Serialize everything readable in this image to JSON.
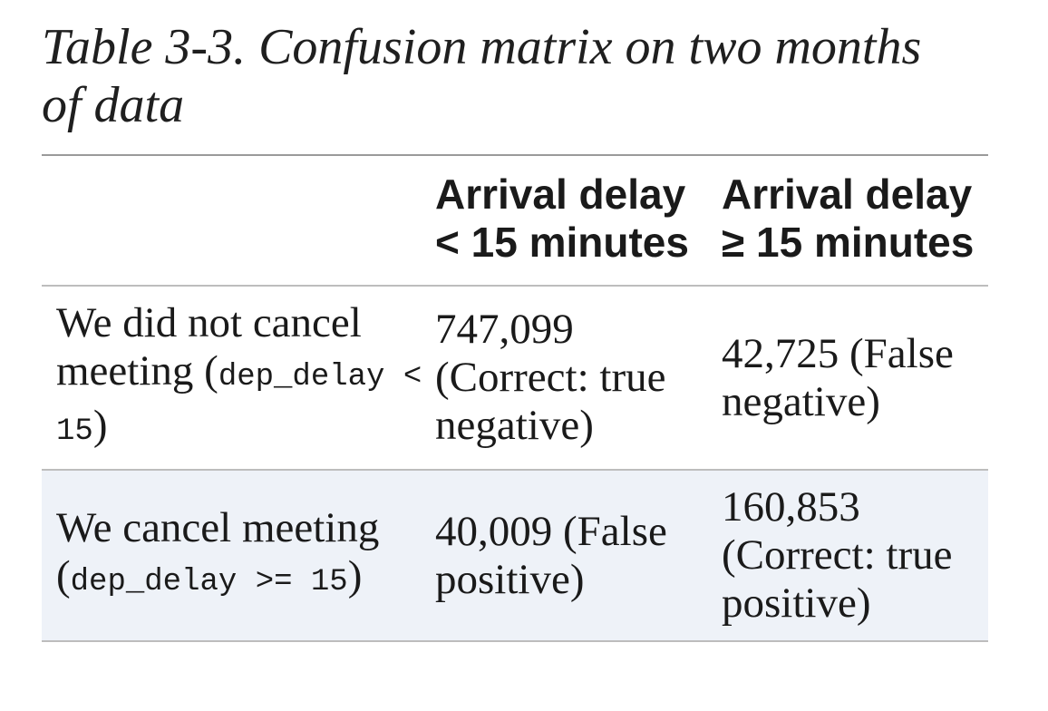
{
  "caption": {
    "label": "Table 3-3.",
    "title": "Confusion matrix on two months of data"
  },
  "table": {
    "headers": [
      "",
      "Arrival delay < 15 minutes",
      "Arrival delay ≥ 15 minutes"
    ],
    "rows": [
      {
        "label_prefix": "We did not cancel meeting (",
        "label_code": "dep_delay < 15",
        "label_suffix": ")",
        "cells": [
          "747,099 (Correct: true negative)",
          "42,725 (False negative)"
        ]
      },
      {
        "label_prefix": "We cancel meet­ing (",
        "label_code": "dep_delay >= 15",
        "label_suffix": ")",
        "cells": [
          "40,009 (False positive)",
          "160,853 (Correct: true positive)"
        ]
      }
    ]
  }
}
